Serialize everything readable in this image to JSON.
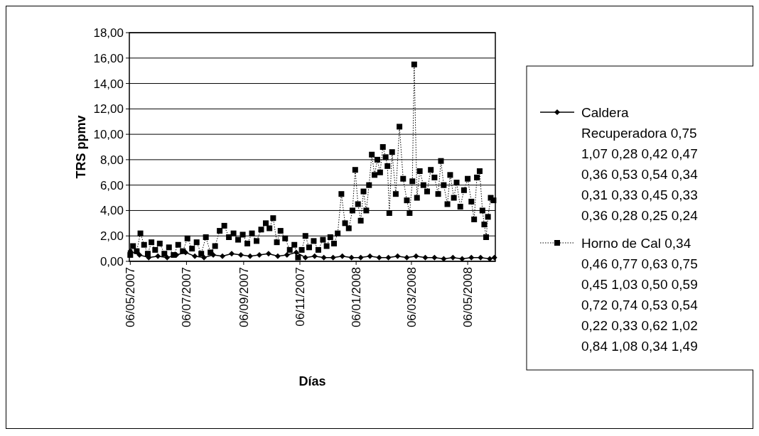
{
  "chart_data": {
    "type": "line",
    "xlabel": "Días",
    "ylabel": "TRS ppmv",
    "xlim": [
      "2007-05-05",
      "2008-06-05"
    ],
    "xticks": [
      {
        "value": "2007-05-06",
        "label": "06/05/2007"
      },
      {
        "value": "2007-07-06",
        "label": "06/07/2007"
      },
      {
        "value": "2007-09-06",
        "label": "06/09/2007"
      },
      {
        "value": "2007-11-06",
        "label": "06/11/2007"
      },
      {
        "value": "2008-01-06",
        "label": "06/01/2008"
      },
      {
        "value": "2008-03-06",
        "label": "06/03/2008"
      },
      {
        "value": "2008-05-06",
        "label": "06/05/2008"
      }
    ],
    "ylim": [
      0,
      18
    ],
    "yticks": [
      {
        "value": 0,
        "label": "0,00"
      },
      {
        "value": 2,
        "label": "2,00"
      },
      {
        "value": 4,
        "label": "4,00"
      },
      {
        "value": 6,
        "label": "6,00"
      },
      {
        "value": 8,
        "label": "8,00"
      },
      {
        "value": 10,
        "label": "10,00"
      },
      {
        "value": 12,
        "label": "12,00"
      },
      {
        "value": 14,
        "label": "14,00"
      },
      {
        "value": 16,
        "label": "16,00"
      },
      {
        "value": 18,
        "label": "18,00"
      }
    ],
    "grid": "y",
    "legend": "right",
    "series": [
      {
        "name": "Caldera Recuperadora 0,75 1,07 0,28 0,42 0,47 0,36 0,53 0,54 0,34 0,31 0,33 0,45 0,33 0,36 0,28 0,25 0,24",
        "color": "#000000",
        "marker": "diamond",
        "line_style": "solid",
        "x": [
          "2007-05-06",
          "2007-05-16",
          "2007-05-26",
          "2007-06-05",
          "2007-06-15",
          "2007-06-25",
          "2007-07-05",
          "2007-07-15",
          "2007-07-25",
          "2007-08-04",
          "2007-08-14",
          "2007-08-24",
          "2007-09-03",
          "2007-09-13",
          "2007-09-23",
          "2007-10-03",
          "2007-10-13",
          "2007-10-23",
          "2007-11-02",
          "2007-11-12",
          "2007-11-22",
          "2007-12-02",
          "2007-12-12",
          "2007-12-22",
          "2008-01-01",
          "2008-01-11",
          "2008-01-21",
          "2008-01-31",
          "2008-02-10",
          "2008-02-20",
          "2008-03-01",
          "2008-03-11",
          "2008-03-21",
          "2008-03-31",
          "2008-04-10",
          "2008-04-20",
          "2008-04-30",
          "2008-05-10",
          "2008-05-20",
          "2008-05-30",
          "2008-06-04"
        ],
        "values": [
          0.8,
          0.5,
          0.3,
          0.4,
          0.3,
          0.5,
          0.7,
          0.4,
          0.3,
          0.5,
          0.4,
          0.6,
          0.5,
          0.4,
          0.5,
          0.6,
          0.4,
          0.5,
          0.7,
          0.3,
          0.4,
          0.3,
          0.3,
          0.4,
          0.3,
          0.3,
          0.4,
          0.3,
          0.3,
          0.4,
          0.3,
          0.4,
          0.3,
          0.3,
          0.2,
          0.3,
          0.2,
          0.3,
          0.3,
          0.2,
          0.3
        ]
      },
      {
        "name": "Horno de Cal 0,34 0,46 0,77 0,63 0,75 0,45 1,03 0,50 0,59 0,72 0,74 0,53 0,54 0,22 0,33 0,62 1,02 0,84 1,08 0,34 1,49",
        "color": "#000000",
        "marker": "square",
        "line_style": "dotted",
        "x": [
          "2007-05-06",
          "2007-05-09",
          "2007-05-13",
          "2007-05-17",
          "2007-05-21",
          "2007-05-25",
          "2007-05-29",
          "2007-06-02",
          "2007-06-07",
          "2007-06-12",
          "2007-06-17",
          "2007-06-22",
          "2007-06-27",
          "2007-07-02",
          "2007-07-07",
          "2007-07-12",
          "2007-07-17",
          "2007-07-22",
          "2007-07-27",
          "2007-08-01",
          "2007-08-06",
          "2007-08-11",
          "2007-08-16",
          "2007-08-21",
          "2007-08-26",
          "2007-08-31",
          "2007-09-05",
          "2007-09-10",
          "2007-09-15",
          "2007-09-20",
          "2007-09-25",
          "2007-09-30",
          "2007-10-04",
          "2007-10-08",
          "2007-10-12",
          "2007-10-16",
          "2007-10-21",
          "2007-10-26",
          "2007-10-31",
          "2007-11-04",
          "2007-11-08",
          "2007-11-12",
          "2007-11-16",
          "2007-11-21",
          "2007-11-26",
          "2007-12-01",
          "2007-12-05",
          "2007-12-09",
          "2007-12-13",
          "2007-12-17",
          "2007-12-21",
          "2007-12-25",
          "2007-12-29",
          "2008-01-02",
          "2008-01-05",
          "2008-01-08",
          "2008-01-11",
          "2008-01-14",
          "2008-01-17",
          "2008-01-20",
          "2008-01-23",
          "2008-01-26",
          "2008-01-29",
          "2008-02-01",
          "2008-02-04",
          "2008-02-07",
          "2008-02-09",
          "2008-02-11",
          "2008-02-14",
          "2008-02-18",
          "2008-02-22",
          "2008-02-26",
          "2008-03-01",
          "2008-03-04",
          "2008-03-07",
          "2008-03-09",
          "2008-03-12",
          "2008-03-15",
          "2008-03-19",
          "2008-03-23",
          "2008-03-27",
          "2008-03-31",
          "2008-04-04",
          "2008-04-07",
          "2008-04-10",
          "2008-04-14",
          "2008-04-17",
          "2008-04-21",
          "2008-04-24",
          "2008-04-28",
          "2008-05-02",
          "2008-05-06",
          "2008-05-10",
          "2008-05-13",
          "2008-05-16",
          "2008-05-19",
          "2008-05-22",
          "2008-05-24",
          "2008-05-26",
          "2008-05-28",
          "2008-05-31",
          "2008-06-03"
        ],
        "values": [
          0.5,
          1.2,
          0.8,
          2.2,
          1.3,
          0.6,
          1.5,
          0.9,
          1.4,
          0.6,
          1.1,
          0.5,
          1.3,
          0.8,
          1.8,
          1.0,
          1.5,
          0.6,
          1.9,
          0.7,
          1.2,
          2.4,
          2.8,
          1.9,
          2.2,
          1.7,
          2.1,
          1.4,
          2.2,
          1.6,
          2.5,
          3.0,
          2.6,
          3.4,
          1.5,
          2.4,
          1.8,
          0.9,
          1.3,
          0.3,
          0.9,
          2.0,
          1.1,
          1.6,
          0.9,
          1.7,
          1.2,
          1.9,
          1.4,
          2.2,
          5.3,
          3.0,
          2.6,
          4.0,
          7.2,
          4.5,
          3.2,
          5.5,
          4.0,
          6.0,
          8.4,
          6.8,
          8.0,
          7.0,
          9.0,
          8.2,
          7.5,
          3.8,
          8.6,
          5.3,
          10.6,
          6.5,
          4.8,
          3.8,
          6.3,
          15.5,
          5.0,
          7.1,
          6.0,
          5.5,
          7.2,
          6.6,
          5.3,
          7.9,
          6.0,
          4.5,
          6.8,
          5.0,
          6.2,
          4.3,
          5.6,
          6.5,
          4.7,
          3.3,
          6.6,
          7.1,
          4.0,
          2.9,
          1.9,
          3.5,
          5.0,
          4.8
        ]
      }
    ]
  }
}
